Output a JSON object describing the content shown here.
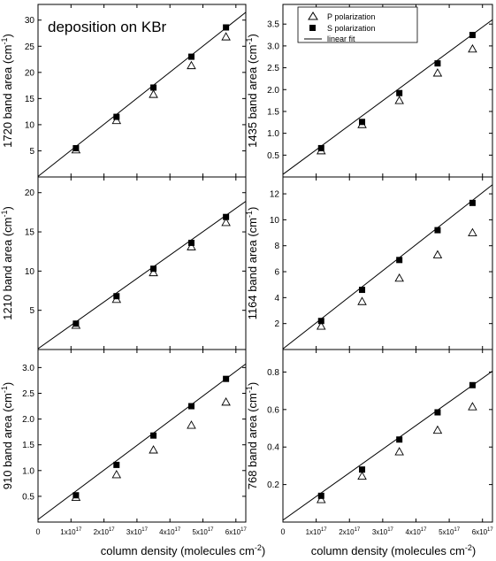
{
  "figure": {
    "annotation": "deposition on KBr",
    "xlabel_text": "column density (molecules cm",
    "xlabel_sup": "-2",
    "xlabel_close": ")",
    "x_ticks": [
      {
        "value": 1e+17,
        "mantissa": "1x10",
        "exp": "17"
      },
      {
        "value": 2e+17,
        "mantissa": "2x10",
        "exp": "17"
      },
      {
        "value": 3e+17,
        "mantissa": "3x10",
        "exp": "17"
      },
      {
        "value": 4e+17,
        "mantissa": "4x10",
        "exp": "17"
      },
      {
        "value": 5e+17,
        "mantissa": "5x10",
        "exp": "17"
      },
      {
        "value": 6e+17,
        "mantissa": "6x10",
        "exp": "17"
      }
    ],
    "x_zero_label": "0",
    "legend": {
      "p_label": "P polarization",
      "s_label": "S polarization",
      "fit_label": "linear fit"
    },
    "colors": {
      "axis": "#000000",
      "marker": "#000000",
      "background": "#ffffff"
    }
  },
  "chart_data": [
    {
      "type": "scatter",
      "panel": "top-left",
      "ylabel_prefix": "1720 band area (cm",
      "ylabel_sup": "-1",
      "ylabel_suffix": ")",
      "xlim": [
        0,
        6.3e+17
      ],
      "ylim": [
        0,
        33
      ],
      "yticks": [
        5,
        10,
        15,
        20,
        25,
        30
      ],
      "ytick_labels": [
        "5",
        "10",
        "15",
        "20",
        "25",
        "30"
      ],
      "x": [
        1.15e+17,
        2.38e+17,
        3.5e+17,
        4.65e+17,
        5.7e+17
      ],
      "series": [
        {
          "name": "P polarization",
          "marker": "open-triangle",
          "values": [
            5.2,
            10.8,
            15.8,
            21.3,
            26.8
          ]
        },
        {
          "name": "S polarization",
          "marker": "filled-square",
          "values": [
            5.5,
            11.5,
            17.1,
            23.0,
            28.6
          ]
        }
      ],
      "fit": {
        "name": "linear fit",
        "x": [
          0,
          6.3e+17
        ],
        "y": [
          0.1,
          31.5
        ]
      }
    },
    {
      "type": "scatter",
      "panel": "top-right",
      "ylabel_prefix": "1435 band area (cm",
      "ylabel_sup": "-1",
      "ylabel_suffix": ")",
      "xlim": [
        0,
        6.3e+17
      ],
      "ylim": [
        0,
        3.95
      ],
      "yticks": [
        0.5,
        1.0,
        1.5,
        2.0,
        2.5,
        3.0,
        3.5
      ],
      "ytick_labels": [
        "0.5",
        "1.0",
        "1.5",
        "2.0",
        "2.5",
        "3.0",
        "3.5"
      ],
      "x": [
        1.15e+17,
        2.38e+17,
        3.5e+17,
        4.65e+17,
        5.7e+17
      ],
      "series": [
        {
          "name": "P polarization",
          "marker": "open-triangle",
          "values": [
            0.6,
            1.2,
            1.75,
            2.38,
            2.93
          ]
        },
        {
          "name": "S polarization",
          "marker": "filled-square",
          "values": [
            0.66,
            1.26,
            1.92,
            2.6,
            3.25
          ]
        }
      ],
      "fit": {
        "name": "linear fit",
        "x": [
          0,
          6.3e+17
        ],
        "y": [
          0.06,
          3.6
        ]
      },
      "legend_position": "top-right"
    },
    {
      "type": "scatter",
      "panel": "middle-left",
      "ylabel_prefix": "1210 band area (cm",
      "ylabel_sup": "-1",
      "ylabel_suffix": ")",
      "xlim": [
        0,
        6.3e+17
      ],
      "ylim": [
        0,
        22
      ],
      "yticks": [
        5,
        10,
        15,
        20
      ],
      "ytick_labels": [
        "5",
        "10",
        "15",
        "20"
      ],
      "x": [
        1.15e+17,
        2.38e+17,
        3.5e+17,
        4.65e+17,
        5.7e+17
      ],
      "series": [
        {
          "name": "P polarization",
          "marker": "open-triangle",
          "values": [
            3.1,
            6.4,
            9.8,
            13.1,
            16.2
          ]
        },
        {
          "name": "S polarization",
          "marker": "filled-square",
          "values": [
            3.3,
            6.8,
            10.3,
            13.6,
            16.9
          ]
        }
      ],
      "fit": {
        "name": "linear fit",
        "x": [
          0,
          6.3e+17
        ],
        "y": [
          0.1,
          18.9
        ]
      }
    },
    {
      "type": "scatter",
      "panel": "middle-right",
      "ylabel_prefix": "1164 band area (cm",
      "ylabel_sup": "-1",
      "ylabel_suffix": ")",
      "xlim": [
        0,
        6.3e+17
      ],
      "ylim": [
        0,
        13.3
      ],
      "yticks": [
        2,
        4,
        6,
        8,
        10,
        12
      ],
      "ytick_labels": [
        "2",
        "4",
        "6",
        "8",
        "10",
        "12"
      ],
      "x": [
        1.15e+17,
        2.38e+17,
        3.5e+17,
        4.65e+17,
        5.7e+17
      ],
      "series": [
        {
          "name": "P polarization",
          "marker": "open-triangle",
          "values": [
            1.8,
            3.7,
            5.5,
            7.3,
            9.0
          ]
        },
        {
          "name": "S polarization",
          "marker": "filled-square",
          "values": [
            2.2,
            4.6,
            6.9,
            9.2,
            11.3
          ]
        }
      ],
      "fit": {
        "name": "linear fit",
        "x": [
          0,
          6.3e+17
        ],
        "y": [
          0.05,
          12.7
        ]
      }
    },
    {
      "type": "scatter",
      "panel": "bottom-left",
      "ylabel_prefix": "910 band area (cm",
      "ylabel_sup": "-1",
      "ylabel_suffix": ")",
      "xlim": [
        0,
        6.3e+17
      ],
      "ylim": [
        0,
        3.35
      ],
      "yticks": [
        0.5,
        1.0,
        1.5,
        2.0,
        2.5,
        3.0
      ],
      "ytick_labels": [
        "0.5",
        "1.0",
        "1.5",
        "2.0",
        "2.5",
        "3.0"
      ],
      "x": [
        1.15e+17,
        2.38e+17,
        3.5e+17,
        4.65e+17,
        5.7e+17
      ],
      "series": [
        {
          "name": "P polarization",
          "marker": "open-triangle",
          "values": [
            0.48,
            0.92,
            1.4,
            1.88,
            2.33
          ]
        },
        {
          "name": "S polarization",
          "marker": "filled-square",
          "values": [
            0.52,
            1.11,
            1.68,
            2.25,
            2.78
          ]
        }
      ],
      "fit": {
        "name": "linear fit",
        "x": [
          0,
          6.3e+17
        ],
        "y": [
          0.05,
          3.07
        ]
      }
    },
    {
      "type": "scatter",
      "panel": "bottom-right",
      "ylabel_prefix": "768 band area (cm",
      "ylabel_sup": "-1",
      "ylabel_suffix": ")",
      "xlim": [
        0,
        6.3e+17
      ],
      "ylim": [
        0,
        0.92
      ],
      "yticks": [
        0.2,
        0.4,
        0.6,
        0.8
      ],
      "ytick_labels": [
        "0.2",
        "0.4",
        "0.6",
        "0.8"
      ],
      "x": [
        1.15e+17,
        2.38e+17,
        3.5e+17,
        4.65e+17,
        5.7e+17
      ],
      "series": [
        {
          "name": "P polarization",
          "marker": "open-triangle",
          "values": [
            0.12,
            0.245,
            0.375,
            0.49,
            0.615
          ]
        },
        {
          "name": "S polarization",
          "marker": "filled-square",
          "values": [
            0.14,
            0.28,
            0.44,
            0.585,
            0.73
          ]
        }
      ],
      "fit": {
        "name": "linear fit",
        "x": [
          0,
          6.3e+17
        ],
        "y": [
          0.01,
          0.805
        ]
      }
    }
  ]
}
